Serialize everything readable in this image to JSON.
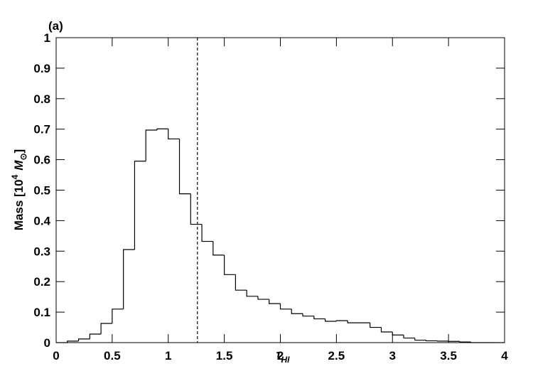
{
  "chart_data": {
    "type": "histogram",
    "panel_label": "(a)",
    "xlabel": {
      "symbol": "τ",
      "sub": "HI"
    },
    "ylabel": {
      "text": "Mass [10",
      "sup": "4",
      "unit": "M",
      "sub": "⊙",
      "end": "]"
    },
    "bins": [
      0,
      0.1,
      0.2,
      0.3,
      0.4,
      0.5,
      0.6,
      0.7,
      0.8,
      0.9,
      1,
      1.1,
      1.2,
      1.3,
      1.4,
      1.5,
      1.6,
      1.7,
      1.8,
      1.9,
      2,
      2.1,
      2.2,
      2.3,
      2.4,
      2.5,
      2.6,
      2.7,
      2.8,
      2.9,
      3,
      3.1,
      3.2,
      3.3,
      3.4,
      3.5,
      3.6,
      3.7,
      3.8,
      3.9,
      4
    ],
    "values": [
      0,
      0.005,
      0.012,
      0.028,
      0.063,
      0.11,
      0.305,
      0.595,
      0.697,
      0.701,
      0.668,
      0.488,
      0.388,
      0.332,
      0.287,
      0.223,
      0.172,
      0.152,
      0.142,
      0.128,
      0.11,
      0.095,
      0.087,
      0.078,
      0.07,
      0.072,
      0.065,
      0.065,
      0.05,
      0.035,
      0.025,
      0.015,
      0.008,
      0.006,
      0.005,
      0.004,
      0.002,
      0,
      0,
      0
    ],
    "color": "#000000",
    "vline_x": 1.26,
    "xlim": [
      0,
      4
    ],
    "xticks": [
      0,
      0.5,
      1,
      1.5,
      2,
      2.5,
      3,
      3.5,
      4
    ],
    "ylim": [
      0,
      1
    ],
    "yticks": [
      0,
      0.1,
      0.2,
      0.3,
      0.4,
      0.5,
      0.6,
      0.7,
      0.8,
      0.9,
      1
    ]
  }
}
